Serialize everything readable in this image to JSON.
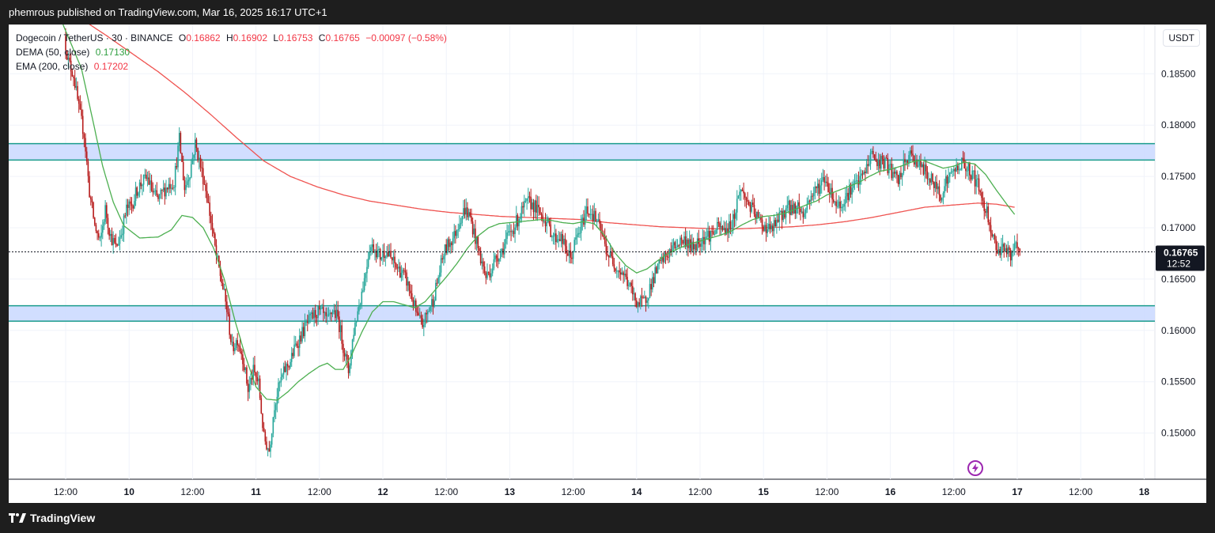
{
  "header": {
    "attribution": "phemrous published on TradingView.com, Mar 16, 2025 16:17 UTC+1"
  },
  "legend": {
    "symbol": "Dogecoin / TetherUS · 30 · BINANCE",
    "o_label": "O",
    "o_value": "0.16862",
    "h_label": "H",
    "h_value": "0.16902",
    "l_label": "L",
    "l_value": "0.16753",
    "c_label": "C",
    "c_value": "0.16765",
    "change": "−0.00097 (−0.58%)",
    "dema_label": "DEMA (50, close)",
    "dema_value": "0.17130",
    "ema_label": "EMA (200, close)",
    "ema_value": "0.17202"
  },
  "price_axis": {
    "currency": "USDT",
    "last_price": "0.16765",
    "countdown": "12:52"
  },
  "footer": {
    "brand": "TradingView"
  },
  "colors": {
    "up": "#26a69a",
    "down": "#b71c1c",
    "dema": "#4caf50",
    "ema": "#ef5350",
    "zone_fill": "#c9d8ff",
    "zone_border": "#1a9c8c",
    "last_price_line": "#131722"
  },
  "icons": {
    "flash": "lightning-bolt-icon"
  },
  "chart_data": {
    "type": "candlestick",
    "title": "Dogecoin / TetherUS · 30 · BINANCE",
    "ylim": [
      0.1455,
      0.1898
    ],
    "y_ticks": [
      0.185,
      0.18,
      0.175,
      0.17,
      0.165,
      0.16,
      0.155,
      0.15
    ],
    "y_tick_labels": [
      "0.18500",
      "0.18000",
      "0.17500",
      "0.17000",
      "0.16500",
      "0.16000",
      "0.15500",
      "0.15000"
    ],
    "x_ticks": [
      {
        "label": "12:00",
        "t": 0
      },
      {
        "label": "10",
        "t": 24
      },
      {
        "label": "12:00",
        "t": 48
      },
      {
        "label": "11",
        "t": 72
      },
      {
        "label": "12:00",
        "t": 96
      },
      {
        "label": "12",
        "t": 120
      },
      {
        "label": "12:00",
        "t": 144
      },
      {
        "label": "13",
        "t": 168
      },
      {
        "label": "12:00",
        "t": 192
      },
      {
        "label": "14",
        "t": 216
      },
      {
        "label": "12:00",
        "t": 240
      },
      {
        "label": "15",
        "t": 264
      },
      {
        "label": "12:00",
        "t": 288
      },
      {
        "label": "16",
        "t": 312
      },
      {
        "label": "12:00",
        "t": 336
      },
      {
        "label": "17",
        "t": 360
      },
      {
        "label": "12:00",
        "t": 384
      },
      {
        "label": "18",
        "t": 408
      }
    ],
    "bold_tick_labels": [
      "10",
      "11",
      "12",
      "13",
      "14",
      "15",
      "16",
      "17",
      "18"
    ],
    "x_tick_hours": "hours after Mar 9 12:00",
    "zones": [
      {
        "name": "resistance",
        "top": 0.1782,
        "bottom": 0.1766
      },
      {
        "name": "support",
        "top": 0.1624,
        "bottom": 0.1609
      }
    ],
    "last_price": 0.16765,
    "close_path": [
      [
        -1,
        0.1895
      ],
      [
        1,
        0.1862
      ],
      [
        3,
        0.1849
      ],
      [
        5,
        0.1815
      ],
      [
        7,
        0.1791
      ],
      [
        9,
        0.1735
      ],
      [
        11,
        0.1702
      ],
      [
        13,
        0.1685
      ],
      [
        15,
        0.1718
      ],
      [
        17,
        0.1692
      ],
      [
        19,
        0.168
      ],
      [
        21,
        0.1695
      ],
      [
        23,
        0.1718
      ],
      [
        25,
        0.1722
      ],
      [
        27,
        0.1737
      ],
      [
        29,
        0.1745
      ],
      [
        31,
        0.1748
      ],
      [
        33,
        0.1734
      ],
      [
        35,
        0.1727
      ],
      [
        37,
        0.1736
      ],
      [
        39,
        0.1742
      ],
      [
        41,
        0.1745
      ],
      [
        43,
        0.1786
      ],
      [
        45,
        0.1738
      ],
      [
        47,
        0.1755
      ],
      [
        49,
        0.1782
      ],
      [
        51,
        0.176
      ],
      [
        53,
        0.1738
      ],
      [
        55,
        0.1706
      ],
      [
        57,
        0.1672
      ],
      [
        59,
        0.1648
      ],
      [
        61,
        0.162
      ],
      [
        63,
        0.1582
      ],
      [
        65,
        0.1592
      ],
      [
        67,
        0.1574
      ],
      [
        69,
        0.1542
      ],
      [
        71,
        0.156
      ],
      [
        73,
        0.1548
      ],
      [
        75,
        0.1495
      ],
      [
        77,
        0.1483
      ],
      [
        79,
        0.1528
      ],
      [
        81,
        0.1548
      ],
      [
        83,
        0.1562
      ],
      [
        85,
        0.157
      ],
      [
        87,
        0.1585
      ],
      [
        89,
        0.1595
      ],
      [
        91,
        0.1605
      ],
      [
        93,
        0.1612
      ],
      [
        95,
        0.1618
      ],
      [
        97,
        0.1616
      ],
      [
        99,
        0.1608
      ],
      [
        101,
        0.162
      ],
      [
        103,
        0.1612
      ],
      [
        105,
        0.1585
      ],
      [
        107,
        0.156
      ],
      [
        109,
        0.16
      ],
      [
        111,
        0.1625
      ],
      [
        113,
        0.165
      ],
      [
        115,
        0.1682
      ],
      [
        117,
        0.168
      ],
      [
        119,
        0.1672
      ],
      [
        121,
        0.1678
      ],
      [
        123,
        0.167
      ],
      [
        125,
        0.1662
      ],
      [
        127,
        0.1657
      ],
      [
        129,
        0.1648
      ],
      [
        131,
        0.1632
      ],
      [
        133,
        0.1613
      ],
      [
        135,
        0.1605
      ],
      [
        137,
        0.1618
      ],
      [
        139,
        0.163
      ],
      [
        141,
        0.1652
      ],
      [
        143,
        0.1675
      ],
      [
        145,
        0.1685
      ],
      [
        147,
        0.1692
      ],
      [
        149,
        0.1708
      ],
      [
        151,
        0.1718
      ],
      [
        153,
        0.171
      ],
      [
        155,
        0.169
      ],
      [
        157,
        0.167
      ],
      [
        159,
        0.1652
      ],
      [
        161,
        0.166
      ],
      [
        163,
        0.1672
      ],
      [
        165,
        0.1678
      ],
      [
        167,
        0.169
      ],
      [
        169,
        0.1698
      ],
      [
        171,
        0.1708
      ],
      [
        173,
        0.1718
      ],
      [
        175,
        0.1725
      ],
      [
        177,
        0.1722
      ],
      [
        179,
        0.1715
      ],
      [
        181,
        0.171
      ],
      [
        183,
        0.17
      ],
      [
        185,
        0.169
      ],
      [
        187,
        0.1692
      ],
      [
        189,
        0.168
      ],
      [
        191,
        0.167
      ],
      [
        193,
        0.1688
      ],
      [
        195,
        0.17
      ],
      [
        197,
        0.1718
      ],
      [
        199,
        0.1715
      ],
      [
        201,
        0.1706
      ],
      [
        203,
        0.1692
      ],
      [
        205,
        0.1675
      ],
      [
        207,
        0.1668
      ],
      [
        209,
        0.166
      ],
      [
        211,
        0.1655
      ],
      [
        213,
        0.1645
      ],
      [
        215,
        0.1632
      ],
      [
        217,
        0.1626
      ],
      [
        219,
        0.1628
      ],
      [
        221,
        0.1642
      ],
      [
        223,
        0.1655
      ],
      [
        225,
        0.1665
      ],
      [
        227,
        0.1672
      ],
      [
        229,
        0.1678
      ],
      [
        231,
        0.1684
      ],
      [
        233,
        0.1688
      ],
      [
        235,
        0.1687
      ],
      [
        237,
        0.168
      ],
      [
        239,
        0.1686
      ],
      [
        241,
        0.169
      ],
      [
        243,
        0.1693
      ],
      [
        245,
        0.1695
      ],
      [
        247,
        0.17
      ],
      [
        249,
        0.1698
      ],
      [
        251,
        0.17
      ],
      [
        253,
        0.1712
      ],
      [
        255,
        0.1738
      ],
      [
        257,
        0.173
      ],
      [
        259,
        0.172
      ],
      [
        261,
        0.1712
      ],
      [
        263,
        0.1705
      ],
      [
        265,
        0.17
      ],
      [
        267,
        0.1698
      ],
      [
        269,
        0.1705
      ],
      [
        271,
        0.1713
      ],
      [
        273,
        0.172
      ],
      [
        275,
        0.1718
      ],
      [
        277,
        0.1722
      ],
      [
        279,
        0.1712
      ],
      [
        281,
        0.1726
      ],
      [
        283,
        0.1735
      ],
      [
        285,
        0.174
      ],
      [
        287,
        0.1748
      ],
      [
        289,
        0.1738
      ],
      [
        291,
        0.1725
      ],
      [
        293,
        0.1722
      ],
      [
        295,
        0.173
      ],
      [
        297,
        0.1738
      ],
      [
        299,
        0.1742
      ],
      [
        301,
        0.1748
      ],
      [
        303,
        0.1758
      ],
      [
        305,
        0.1774
      ],
      [
        307,
        0.1762
      ],
      [
        309,
        0.1765
      ],
      [
        311,
        0.176
      ],
      [
        313,
        0.1752
      ],
      [
        315,
        0.1745
      ],
      [
        317,
        0.176
      ],
      [
        319,
        0.177
      ],
      [
        321,
        0.1768
      ],
      [
        323,
        0.176
      ],
      [
        325,
        0.1755
      ],
      [
        327,
        0.1748
      ],
      [
        329,
        0.174
      ],
      [
        331,
        0.1733
      ],
      [
        333,
        0.1745
      ],
      [
        335,
        0.1752
      ],
      [
        337,
        0.1758
      ],
      [
        339,
        0.1763
      ],
      [
        341,
        0.1758
      ],
      [
        343,
        0.1752
      ],
      [
        345,
        0.1742
      ],
      [
        347,
        0.1725
      ],
      [
        349,
        0.1712
      ],
      [
        351,
        0.1688
      ],
      [
        353,
        0.1678
      ],
      [
        355,
        0.1683
      ],
      [
        357,
        0.1672
      ],
      [
        359,
        0.168
      ],
      [
        361,
        0.1676
      ]
    ],
    "dema_path": [
      [
        -1,
        0.1898
      ],
      [
        6,
        0.1855
      ],
      [
        10,
        0.1808
      ],
      [
        14,
        0.176
      ],
      [
        18,
        0.1725
      ],
      [
        22,
        0.1702
      ],
      [
        28,
        0.169
      ],
      [
        35,
        0.1691
      ],
      [
        40,
        0.1698
      ],
      [
        44,
        0.1712
      ],
      [
        48,
        0.171
      ],
      [
        52,
        0.17
      ],
      [
        56,
        0.168
      ],
      [
        60,
        0.165
      ],
      [
        64,
        0.161
      ],
      [
        68,
        0.1575
      ],
      [
        72,
        0.1545
      ],
      [
        76,
        0.1533
      ],
      [
        80,
        0.1532
      ],
      [
        84,
        0.154
      ],
      [
        88,
        0.155
      ],
      [
        92,
        0.1558
      ],
      [
        96,
        0.1565
      ],
      [
        99,
        0.1568
      ],
      [
        102,
        0.1562
      ],
      [
        105,
        0.1562
      ],
      [
        108,
        0.1575
      ],
      [
        112,
        0.1598
      ],
      [
        116,
        0.1618
      ],
      [
        120,
        0.1628
      ],
      [
        124,
        0.1628
      ],
      [
        128,
        0.1625
      ],
      [
        132,
        0.1622
      ],
      [
        136,
        0.1628
      ],
      [
        140,
        0.164
      ],
      [
        144,
        0.1652
      ],
      [
        148,
        0.1665
      ],
      [
        152,
        0.168
      ],
      [
        156,
        0.1692
      ],
      [
        160,
        0.17
      ],
      [
        164,
        0.1704
      ],
      [
        168,
        0.1705
      ],
      [
        172,
        0.1706
      ],
      [
        176,
        0.1707
      ],
      [
        180,
        0.1708
      ],
      [
        184,
        0.1707
      ],
      [
        188,
        0.1705
      ],
      [
        192,
        0.1704
      ],
      [
        196,
        0.1706
      ],
      [
        200,
        0.1704
      ],
      [
        204,
        0.1692
      ],
      [
        208,
        0.1675
      ],
      [
        212,
        0.1663
      ],
      [
        216,
        0.1656
      ],
      [
        220,
        0.166
      ],
      [
        224,
        0.1668
      ],
      [
        228,
        0.1675
      ],
      [
        232,
        0.168
      ],
      [
        236,
        0.1684
      ],
      [
        240,
        0.1687
      ],
      [
        244,
        0.169
      ],
      [
        248,
        0.1693
      ],
      [
        252,
        0.1697
      ],
      [
        256,
        0.1703
      ],
      [
        260,
        0.1708
      ],
      [
        264,
        0.1711
      ],
      [
        268,
        0.1712
      ],
      [
        272,
        0.1714
      ],
      [
        276,
        0.1718
      ],
      [
        280,
        0.1722
      ],
      [
        284,
        0.1726
      ],
      [
        288,
        0.1732
      ],
      [
        292,
        0.1736
      ],
      [
        296,
        0.174
      ],
      [
        300,
        0.1744
      ],
      [
        304,
        0.175
      ],
      [
        308,
        0.1755
      ],
      [
        312,
        0.1757
      ],
      [
        316,
        0.176
      ],
      [
        320,
        0.1764
      ],
      [
        324,
        0.1766
      ],
      [
        328,
        0.1762
      ],
      [
        332,
        0.1758
      ],
      [
        336,
        0.176
      ],
      [
        340,
        0.1764
      ],
      [
        344,
        0.1762
      ],
      [
        348,
        0.1752
      ],
      [
        352,
        0.1737
      ],
      [
        356,
        0.1723
      ],
      [
        359,
        0.1713
      ]
    ],
    "ema_path": [
      [
        -2,
        0.192
      ],
      [
        5,
        0.1905
      ],
      [
        15,
        0.1888
      ],
      [
        25,
        0.187
      ],
      [
        35,
        0.1852
      ],
      [
        45,
        0.1832
      ],
      [
        55,
        0.181
      ],
      [
        65,
        0.1787
      ],
      [
        75,
        0.1765
      ],
      [
        85,
        0.175
      ],
      [
        95,
        0.174
      ],
      [
        105,
        0.1732
      ],
      [
        115,
        0.1726
      ],
      [
        125,
        0.1722
      ],
      [
        135,
        0.1718
      ],
      [
        145,
        0.1715
      ],
      [
        155,
        0.1713
      ],
      [
        165,
        0.1711
      ],
      [
        175,
        0.171
      ],
      [
        185,
        0.1709
      ],
      [
        195,
        0.1708
      ],
      [
        205,
        0.1705
      ],
      [
        215,
        0.1703
      ],
      [
        225,
        0.1701
      ],
      [
        235,
        0.17
      ],
      [
        245,
        0.1699
      ],
      [
        255,
        0.1699
      ],
      [
        265,
        0.17
      ],
      [
        275,
        0.1701
      ],
      [
        285,
        0.1703
      ],
      [
        295,
        0.1706
      ],
      [
        305,
        0.171
      ],
      [
        315,
        0.1715
      ],
      [
        325,
        0.172
      ],
      [
        335,
        0.1722
      ],
      [
        345,
        0.1724
      ],
      [
        352,
        0.1723
      ],
      [
        359,
        0.172
      ]
    ]
  }
}
